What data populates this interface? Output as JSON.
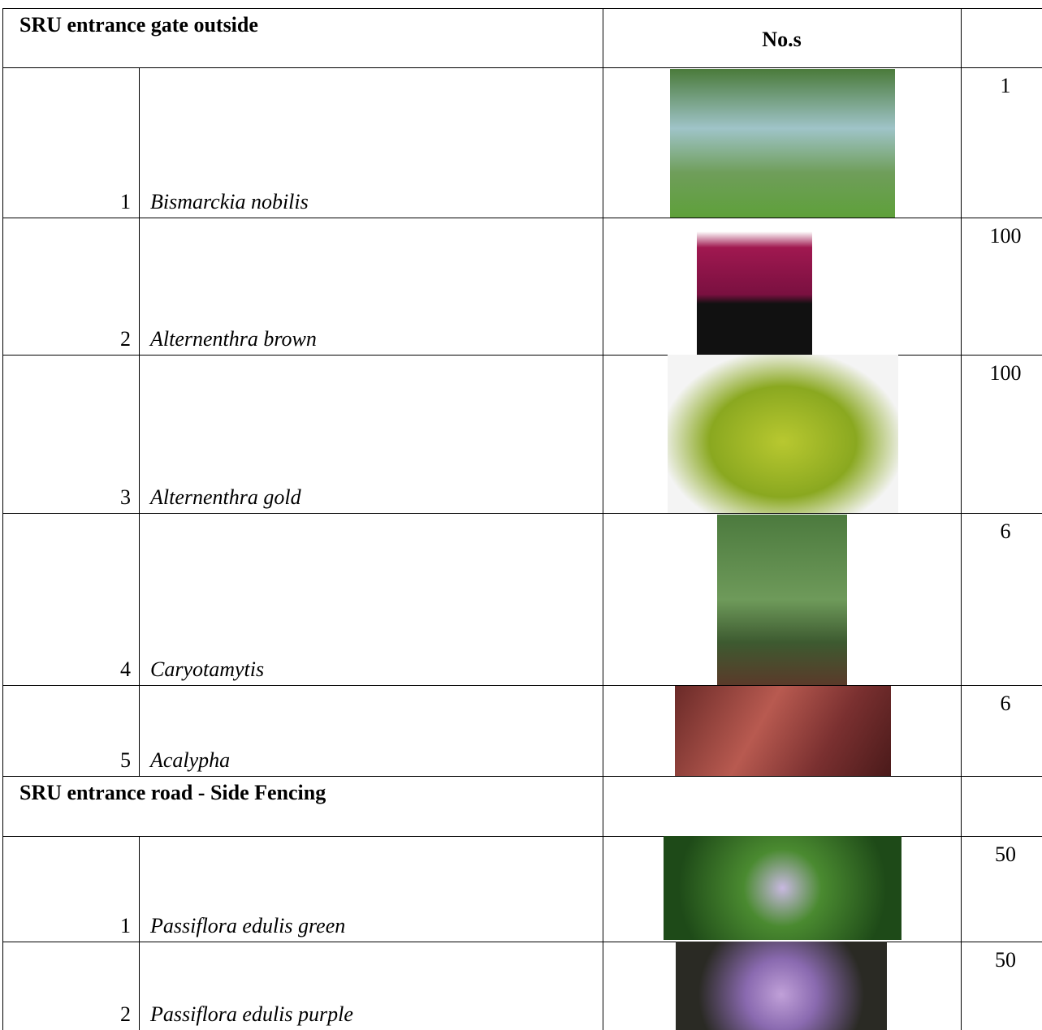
{
  "sections": [
    {
      "title": "SRU entrance gate outside",
      "column_header": "No.s",
      "rows": [
        {
          "index": 1,
          "name": "Bismarckia nobilis",
          "count": 1
        },
        {
          "index": 2,
          "name": "Alternenthra brown",
          "count": 100
        },
        {
          "index": 3,
          "name": "Alternenthra gold",
          "count": 100
        },
        {
          "index": 4,
          "name": "Caryotamytis",
          "count": 6
        },
        {
          "index": 5,
          "name": "Acalypha",
          "count": 6
        }
      ]
    },
    {
      "title": "SRU entrance road - Side Fencing",
      "rows": [
        {
          "index": 1,
          "name": "Passiflora edulis green",
          "count": 50
        },
        {
          "index": 2,
          "name": "Passiflora edulis purple",
          "count": 50
        }
      ]
    }
  ]
}
